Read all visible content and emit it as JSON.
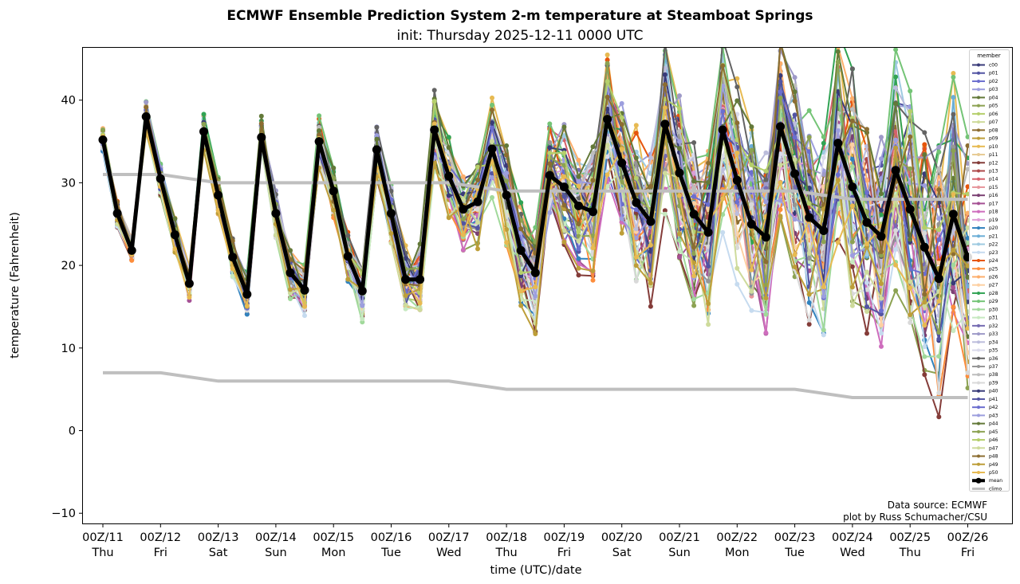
{
  "chart_data": {
    "type": "line",
    "title": "ECMWF Ensemble Prediction System 2-m temperature at Steamboat Springs",
    "subtitle": "init: Thursday 2025-12-11 0000 UTC",
    "xlabel": "time (UTC)/date",
    "ylabel": "temperature (Fahrenheit)",
    "ylim": [
      -11.3,
      46.3
    ],
    "xlim_days": [
      -0.33,
      15.8
    ],
    "step_hours": 6,
    "yticks": [
      -10,
      0,
      10,
      20,
      30,
      40
    ],
    "ytick_labels": [
      "−10",
      "0",
      "10",
      "20",
      "30",
      "40"
    ],
    "xticks": [
      {
        "day": 0,
        "line1": "00Z/11",
        "line2": "Thu"
      },
      {
        "day": 1,
        "line1": "00Z/12",
        "line2": "Fri"
      },
      {
        "day": 2,
        "line1": "00Z/13",
        "line2": "Sat"
      },
      {
        "day": 3,
        "line1": "00Z/14",
        "line2": "Sun"
      },
      {
        "day": 4,
        "line1": "00Z/15",
        "line2": "Mon"
      },
      {
        "day": 5,
        "line1": "00Z/16",
        "line2": "Tue"
      },
      {
        "day": 6,
        "line1": "00Z/17",
        "line2": "Wed"
      },
      {
        "day": 7,
        "line1": "00Z/18",
        "line2": "Thu"
      },
      {
        "day": 8,
        "line1": "00Z/19",
        "line2": "Fri"
      },
      {
        "day": 9,
        "line1": "00Z/20",
        "line2": "Sat"
      },
      {
        "day": 10,
        "line1": "00Z/21",
        "line2": "Sun"
      },
      {
        "day": 11,
        "line1": "00Z/22",
        "line2": "Mon"
      },
      {
        "day": 12,
        "line1": "00Z/23",
        "line2": "Tue"
      },
      {
        "day": 13,
        "line1": "00Z/24",
        "line2": "Wed"
      },
      {
        "day": 14,
        "line1": "00Z/25",
        "line2": "Thu"
      },
      {
        "day": 15,
        "line1": "00Z/26",
        "line2": "Fri"
      }
    ],
    "mean": {
      "name": "mean",
      "color": "#000000",
      "values": [
        35.2,
        26.3,
        21.8,
        38.0,
        30.5,
        23.7,
        17.8,
        36.2,
        28.5,
        21.0,
        16.5,
        35.5,
        26.3,
        19.1,
        17.0,
        35.0,
        29.0,
        21.1,
        16.9,
        34.0,
        26.3,
        18.3,
        18.3,
        36.4,
        30.8,
        26.8,
        27.7,
        34.1,
        28.5,
        21.8,
        19.1,
        30.9,
        29.5,
        27.2,
        26.5,
        37.7,
        32.4,
        27.6,
        25.3,
        37.1,
        31.2,
        26.2,
        24.0,
        36.4,
        30.3,
        25.0,
        23.4,
        36.8,
        31.1,
        25.8,
        24.2,
        34.8,
        29.5,
        25.2,
        23.5,
        31.5,
        26.8,
        22.2,
        18.4,
        26.2,
        21.0
      ]
    },
    "climo": {
      "name": "climo",
      "color": "#bfbfbf",
      "high": {
        "days": [
          0,
          1,
          2,
          6,
          7,
          12,
          13,
          15
        ],
        "values": [
          31,
          31,
          30,
          30,
          29,
          29,
          28,
          28
        ]
      },
      "low": {
        "days": [
          0,
          1,
          2,
          6,
          7,
          12,
          13,
          15
        ],
        "values": [
          7,
          7,
          6,
          6,
          5,
          5,
          4,
          4
        ]
      }
    },
    "members": [
      {
        "name": "c00",
        "color": "#393b79"
      },
      {
        "name": "p01",
        "color": "#5254a3"
      },
      {
        "name": "p02",
        "color": "#6b6ecf"
      },
      {
        "name": "p03",
        "color": "#9c9ede"
      },
      {
        "name": "p04",
        "color": "#637939"
      },
      {
        "name": "p05",
        "color": "#8ca252"
      },
      {
        "name": "p06",
        "color": "#b5cf6b"
      },
      {
        "name": "p07",
        "color": "#cedb9c"
      },
      {
        "name": "p08",
        "color": "#8c6d31"
      },
      {
        "name": "p09",
        "color": "#bd9e39"
      },
      {
        "name": "p10",
        "color": "#e7ba52"
      },
      {
        "name": "p11",
        "color": "#e7cb94"
      },
      {
        "name": "p12",
        "color": "#843c39"
      },
      {
        "name": "p13",
        "color": "#ad494a"
      },
      {
        "name": "p14",
        "color": "#d6616b"
      },
      {
        "name": "p15",
        "color": "#e7969c"
      },
      {
        "name": "p16",
        "color": "#7b4173"
      },
      {
        "name": "p17",
        "color": "#a55194"
      },
      {
        "name": "p18",
        "color": "#ce6dbd"
      },
      {
        "name": "p19",
        "color": "#de9ed6"
      },
      {
        "name": "p20",
        "color": "#3182bd"
      },
      {
        "name": "p21",
        "color": "#6baed6"
      },
      {
        "name": "p22",
        "color": "#9ecae1"
      },
      {
        "name": "p23",
        "color": "#c6dbef"
      },
      {
        "name": "p24",
        "color": "#e6550d"
      },
      {
        "name": "p25",
        "color": "#fd8d3c"
      },
      {
        "name": "p26",
        "color": "#fdae6b"
      },
      {
        "name": "p27",
        "color": "#fdd0a2"
      },
      {
        "name": "p28",
        "color": "#31a354"
      },
      {
        "name": "p29",
        "color": "#74c476"
      },
      {
        "name": "p30",
        "color": "#a1d99b"
      },
      {
        "name": "p31",
        "color": "#c7e9c0"
      },
      {
        "name": "p32",
        "color": "#756bb1"
      },
      {
        "name": "p33",
        "color": "#9e9ac8"
      },
      {
        "name": "p34",
        "color": "#bcbddc"
      },
      {
        "name": "p35",
        "color": "#dadaeb"
      },
      {
        "name": "p36",
        "color": "#636363"
      },
      {
        "name": "p37",
        "color": "#969696"
      },
      {
        "name": "p38",
        "color": "#bdbdbd"
      },
      {
        "name": "p39",
        "color": "#d9d9d9"
      },
      {
        "name": "p40",
        "color": "#393b79"
      },
      {
        "name": "p41",
        "color": "#5254a3"
      },
      {
        "name": "p42",
        "color": "#6b6ecf"
      },
      {
        "name": "p43",
        "color": "#9c9ede"
      },
      {
        "name": "p44",
        "color": "#637939"
      },
      {
        "name": "p45",
        "color": "#8ca252"
      },
      {
        "name": "p46",
        "color": "#b5cf6b"
      },
      {
        "name": "p47",
        "color": "#cedb9c"
      },
      {
        "name": "p48",
        "color": "#8c6d31"
      },
      {
        "name": "p49",
        "color": "#bd9e39"
      },
      {
        "name": "p50",
        "color": "#e7ba52"
      }
    ],
    "member_spread_note": "approximate",
    "legend": {
      "title": "member",
      "position": "right",
      "mean_label": "mean",
      "climo_label": "climo"
    },
    "annotations": [
      "Data source: ECMWF",
      "plot by Russ Schumacher/CSU"
    ],
    "grid": false
  }
}
